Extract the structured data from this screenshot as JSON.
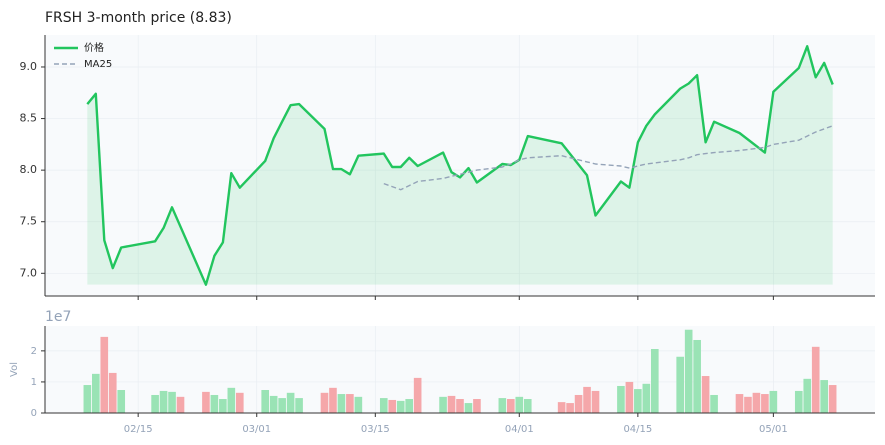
{
  "chart_data": [
    {
      "type": "line",
      "title": "FRSH  3-month price (8.83)",
      "x": [
        "02/09",
        "02/10",
        "02/11",
        "02/12",
        "02/13",
        "02/17",
        "02/18",
        "02/19",
        "02/23",
        "02/24",
        "02/25",
        "02/26",
        "02/27",
        "03/02",
        "03/03",
        "03/04",
        "03/05",
        "03/06",
        "03/09",
        "03/10",
        "03/11",
        "03/12",
        "03/13",
        "03/16",
        "03/17",
        "03/18",
        "03/19",
        "03/20",
        "03/23",
        "03/24",
        "03/25",
        "03/26",
        "03/27",
        "03/30",
        "03/31",
        "04/01",
        "04/02",
        "04/06",
        "04/09",
        "04/10",
        "04/13",
        "04/14",
        "04/15",
        "04/16",
        "04/17",
        "04/20",
        "04/21",
        "04/22",
        "04/23",
        "04/24",
        "04/27",
        "04/30",
        "05/01",
        "05/04",
        "05/05",
        "05/06",
        "05/07",
        "05/08"
      ],
      "series": [
        {
          "name": "价格",
          "color": "#22c55e",
          "fill": true,
          "values": [
            8.64,
            8.74,
            7.32,
            7.05,
            7.25,
            7.31,
            7.44,
            7.64,
            6.89,
            7.17,
            7.3,
            7.97,
            7.83,
            8.09,
            8.31,
            8.47,
            8.63,
            8.64,
            8.4,
            8.01,
            8.01,
            7.96,
            8.14,
            8.16,
            8.03,
            8.03,
            8.12,
            8.04,
            8.17,
            7.98,
            7.93,
            8.02,
            7.88,
            8.06,
            8.05,
            8.1,
            8.33,
            8.26,
            7.95,
            7.56,
            7.89,
            7.83,
            8.27,
            8.43,
            8.54,
            8.79,
            8.84,
            8.92,
            8.27,
            8.47,
            8.36,
            8.17,
            8.76,
            8.99,
            9.2,
            8.9,
            9.04,
            8.83
          ]
        },
        {
          "name": "MA25",
          "color": "#94a3b8",
          "dash": true,
          "values": [
            null,
            null,
            null,
            null,
            null,
            null,
            null,
            null,
            null,
            null,
            null,
            null,
            null,
            null,
            null,
            null,
            null,
            null,
            null,
            null,
            null,
            null,
            null,
            7.87,
            7.84,
            7.81,
            7.85,
            7.89,
            7.92,
            7.94,
            7.96,
            7.98,
            8.0,
            8.03,
            8.06,
            8.1,
            8.12,
            8.14,
            8.08,
            8.06,
            8.04,
            8.02,
            8.04,
            8.06,
            8.07,
            8.1,
            8.12,
            8.15,
            8.16,
            8.17,
            8.19,
            8.22,
            8.25,
            8.29,
            8.33,
            8.37,
            8.4,
            8.43
          ]
        }
      ],
      "xlim": [
        "02/04",
        "05/13"
      ],
      "xticks": [
        "02/15",
        "03/01",
        "03/15",
        "04/01",
        "04/15",
        "05/01"
      ],
      "ylim": [
        6.78,
        9.31
      ],
      "yticks": [
        {
          "value": 7,
          "label": "7.0"
        },
        7.5,
        {
          "value": 8,
          "label": "8.0"
        },
        8.5,
        {
          "value": 9,
          "label": "9.0"
        }
      ],
      "grid": true,
      "legend": "upper left"
    },
    {
      "type": "bar",
      "ylabel": "Vol",
      "offset_label": "1e7",
      "x": [
        "02/09",
        "02/10",
        "02/11",
        "02/12",
        "02/13",
        "02/17",
        "02/18",
        "02/19",
        "02/20",
        "02/23",
        "02/24",
        "02/25",
        "02/26",
        "02/27",
        "03/02",
        "03/03",
        "03/04",
        "03/05",
        "03/06",
        "03/09",
        "03/10",
        "03/11",
        "03/12",
        "03/13",
        "03/16",
        "03/17",
        "03/18",
        "03/19",
        "03/20",
        "03/23",
        "03/24",
        "03/25",
        "03/26",
        "03/27",
        "03/30",
        "03/31",
        "04/01",
        "04/02",
        "04/06",
        "04/07",
        "04/08",
        "04/09",
        "04/10",
        "04/13",
        "04/14",
        "04/15",
        "04/16",
        "04/17",
        "04/20",
        "04/21",
        "04/22",
        "04/23",
        "04/24",
        "04/27",
        "04/28",
        "04/29",
        "04/30",
        "05/01",
        "05/04",
        "05/05",
        "05/06",
        "05/07",
        "05/08"
      ],
      "values": [
        0.9,
        1.26,
        2.45,
        1.29,
        0.74,
        0.58,
        0.71,
        0.68,
        0.52,
        0.68,
        0.58,
        0.45,
        0.81,
        0.65,
        0.74,
        0.55,
        0.48,
        0.65,
        0.48,
        0.65,
        0.81,
        0.61,
        0.61,
        0.52,
        0.48,
        0.42,
        0.39,
        0.45,
        1.13,
        0.52,
        0.55,
        0.45,
        0.32,
        0.45,
        0.48,
        0.45,
        0.52,
        0.45,
        0.35,
        0.32,
        0.58,
        0.84,
        0.71,
        0.87,
        1.0,
        0.77,
        0.94,
        2.06,
        1.81,
        2.68,
        2.35,
        1.19,
        0.58,
        0.61,
        0.52,
        0.65,
        0.61,
        0.71,
        0.71,
        1.1,
        2.13,
        1.06,
        0.9
      ],
      "colors": [
        "#9ae3b5",
        "#9ae3b5",
        "#f5a7aa",
        "#f5a7aa",
        "#9ae3b5",
        "#9ae3b5",
        "#9ae3b5",
        "#9ae3b5",
        "#f5a7aa",
        "#f5a7aa",
        "#9ae3b5",
        "#9ae3b5",
        "#9ae3b5",
        "#f5a7aa",
        "#9ae3b5",
        "#9ae3b5",
        "#9ae3b5",
        "#9ae3b5",
        "#9ae3b5",
        "#f5a7aa",
        "#f5a7aa",
        "#9ae3b5",
        "#f5a7aa",
        "#9ae3b5",
        "#9ae3b5",
        "#f5a7aa",
        "#9ae3b5",
        "#9ae3b5",
        "#f5a7aa",
        "#9ae3b5",
        "#f5a7aa",
        "#f5a7aa",
        "#9ae3b5",
        "#f5a7aa",
        "#9ae3b5",
        "#f5a7aa",
        "#9ae3b5",
        "#9ae3b5",
        "#f5a7aa",
        "#f5a7aa",
        "#f5a7aa",
        "#f5a7aa",
        "#f5a7aa",
        "#9ae3b5",
        "#f5a7aa",
        "#9ae3b5",
        "#9ae3b5",
        "#9ae3b5",
        "#9ae3b5",
        "#9ae3b5",
        "#9ae3b5",
        "#f5a7aa",
        "#9ae3b5",
        "#f5a7aa",
        "#f5a7aa",
        "#f5a7aa",
        "#f5a7aa",
        "#9ae3b5",
        "#9ae3b5",
        "#9ae3b5",
        "#f5a7aa",
        "#9ae3b5",
        "#f5a7aa"
      ],
      "xlim": [
        "02/04",
        "05/13"
      ],
      "xticks": [
        "02/15",
        "03/01",
        "03/15",
        "04/01",
        "04/15",
        "05/01"
      ],
      "ylim": [
        0,
        2.8
      ],
      "yticks": [
        0,
        1,
        2
      ],
      "grid": true
    }
  ]
}
